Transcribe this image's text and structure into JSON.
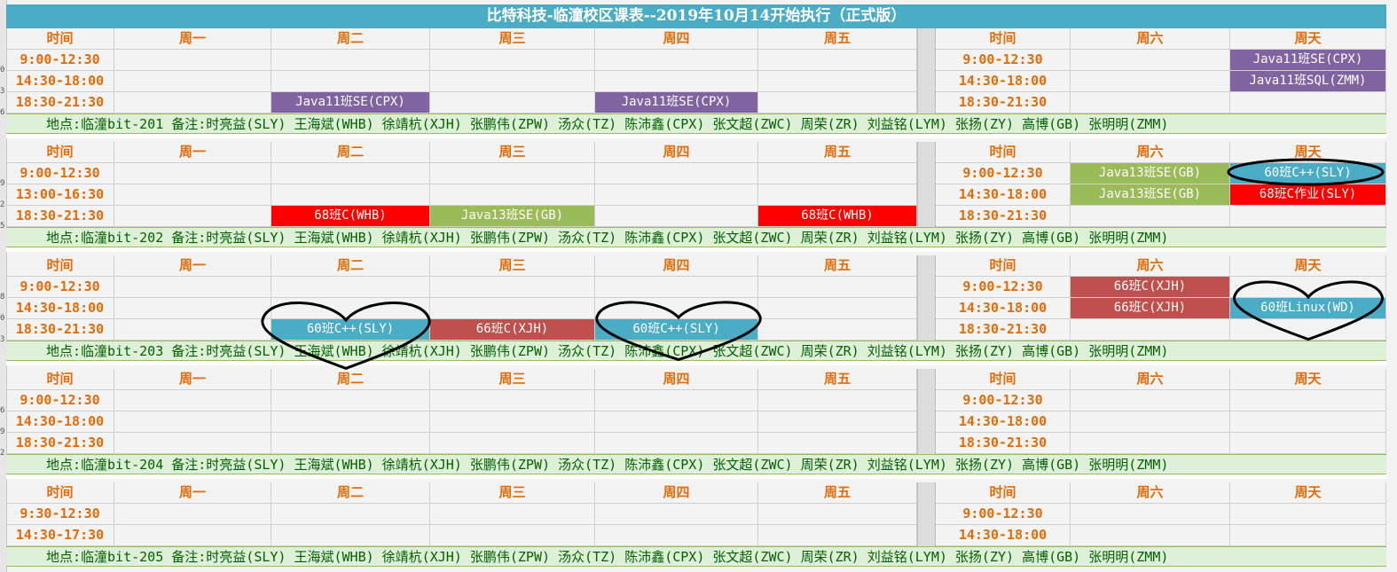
{
  "title": "比特科技-临潼校区课表--2019年10月14开始执行（正式版）",
  "colors": {
    "title_bg": "#4bacc6",
    "header_text": "#e36c09",
    "location_bg": "#dff0d8",
    "location_text": "#006100",
    "purple": "#8064a2",
    "green": "#9bbb59",
    "red": "#ff0000",
    "brick": "#c0504d",
    "teal": "#4bacc6"
  },
  "headers": {
    "time": "时间",
    "mon": "周一",
    "tue": "周二",
    "wed": "周三",
    "thu": "周四",
    "fri": "周五",
    "sat": "周六",
    "sun": "周天"
  },
  "location_note": " 备注:时亮益(SLY) 王海斌(WHB) 徐靖杭(XJH) 张鹏伟(ZPW) 汤众(TZ) 陈沛鑫(CPX) 张文超(ZWC) 周荣(ZR) 刘益铭(LYM)  张扬(ZY) 高博(GB)  张明明(ZMM)",
  "blocks": [
    {
      "location": "地点:临潼bit-201",
      "weekday_times": [
        "9:00-12:30",
        "14:30-18:00",
        "18:30-21:30"
      ],
      "weekend_times": [
        "9:00-12:30",
        "14:30-18:00",
        "18:30-21:30"
      ],
      "courses": [
        {
          "row": 2,
          "col": "tue",
          "text": "Java11班SE(CPX)",
          "color": "purple"
        },
        {
          "row": 2,
          "col": "thu",
          "text": "Java11班SE(CPX)",
          "color": "purple"
        },
        {
          "row": 0,
          "col": "sun",
          "text": "Java11班SE(CPX)",
          "color": "purple"
        },
        {
          "row": 1,
          "col": "sun",
          "text": "Java11班SQL(ZMM)",
          "color": "purple"
        }
      ]
    },
    {
      "location": "地点:临潼bit-202",
      "weekday_times": [
        "9:00-12:30",
        "13:00-16:30",
        "18:30-21:30"
      ],
      "weekend_times": [
        "9:00-12:30",
        "14:30-18:00",
        "18:30-21:30"
      ],
      "courses": [
        {
          "row": 2,
          "col": "tue",
          "text": "68班C(WHB)",
          "color": "red"
        },
        {
          "row": 2,
          "col": "wed",
          "text": "Java13班SE(GB)",
          "color": "green"
        },
        {
          "row": 2,
          "col": "fri",
          "text": "68班C(WHB)",
          "color": "red"
        },
        {
          "row": 0,
          "col": "sat",
          "text": "Java13班SE(GB)",
          "color": "green"
        },
        {
          "row": 1,
          "col": "sat",
          "text": "Java13班SE(GB)",
          "color": "green"
        },
        {
          "row": 0,
          "col": "sun",
          "text": "60班C++(SLY)",
          "color": "teal"
        },
        {
          "row": 1,
          "col": "sun",
          "text": "68班C作业(SLY)",
          "color": "red"
        }
      ]
    },
    {
      "location": "地点:临潼bit-203",
      "weekday_times": [
        "9:00-12:30",
        "14:30-18:00",
        "18:30-21:30"
      ],
      "weekend_times": [
        "9:00-12:30",
        "14:30-18:00",
        "18:30-21:30"
      ],
      "courses": [
        {
          "row": 2,
          "col": "tue",
          "text": "60班C++(SLY)",
          "color": "teal"
        },
        {
          "row": 2,
          "col": "wed",
          "text": "66班C(XJH)",
          "color": "brick"
        },
        {
          "row": 2,
          "col": "thu",
          "text": "60班C++(SLY)",
          "color": "teal"
        },
        {
          "row": 0,
          "col": "sat",
          "text": "66班C(XJH)",
          "color": "brick"
        },
        {
          "row": 1,
          "col": "sat",
          "text": "66班C(XJH)",
          "color": "brick"
        },
        {
          "row": 1,
          "col": "sun",
          "text": "60班Linux(WD)",
          "color": "teal"
        }
      ]
    },
    {
      "location": "地点:临潼bit-204",
      "weekday_times": [
        "9:00-12:30",
        "14:30-18:00",
        "18:30-21:30"
      ],
      "weekend_times": [
        "9:00-12:30",
        "14:30-18:00",
        "18:30-21:30"
      ],
      "courses": []
    },
    {
      "location": "地点:临潼bit-205",
      "weekday_times": [
        "9:30-12:30",
        "14:30-17:30"
      ],
      "weekend_times": [
        "9:00-12:30",
        "14:30-18:00"
      ],
      "courses": []
    }
  ]
}
